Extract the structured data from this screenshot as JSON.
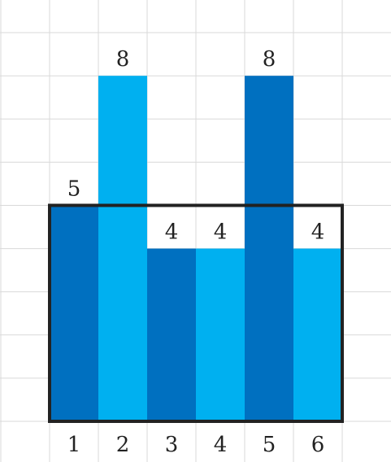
{
  "chart_data": {
    "type": "bar",
    "categories": [
      "1",
      "2",
      "3",
      "4",
      "5",
      "6"
    ],
    "values": [
      5,
      8,
      4,
      4,
      8,
      4
    ],
    "bar_colors": [
      "#0070c0",
      "#00b0f0",
      "#0070c0",
      "#00b0f0",
      "#0070c0",
      "#00b0f0"
    ],
    "ylim": [
      0,
      9.5
    ],
    "grid": true,
    "grid_color": "#d9d9d9",
    "highlight_box": {
      "from_category": "1",
      "to_category": "6",
      "height_value": 5
    },
    "highlight_box_color": "#222222"
  }
}
